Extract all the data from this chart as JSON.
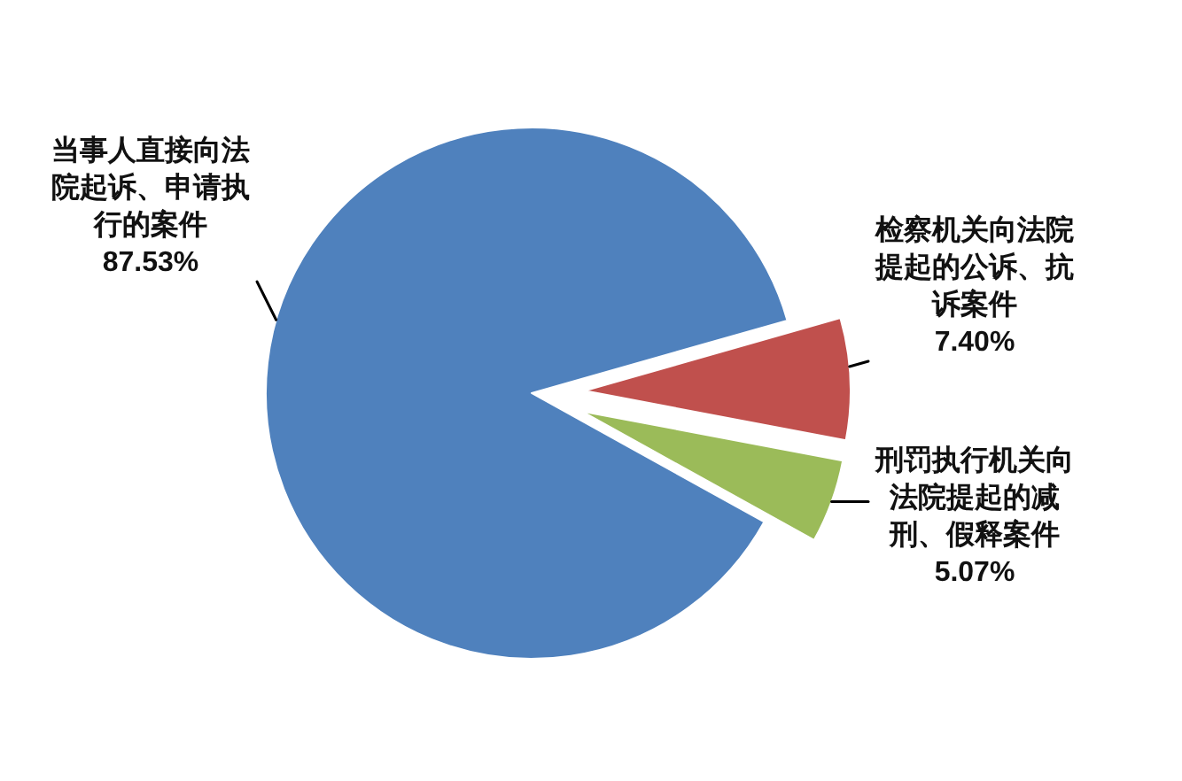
{
  "chart_data": {
    "type": "pie",
    "categories": [
      "当事人直接向法院起诉、申请执行的案件",
      "检察机关向法院提起的公诉、抗诉案件",
      "刑罚执行机关向法院提起的减刑、假释案件"
    ],
    "values": [
      87.53,
      7.4,
      5.07
    ],
    "value_labels": [
      "87.53%",
      "7.40%",
      "5.07%"
    ],
    "colors": [
      "#4f81bd",
      "#c0504d",
      "#9bbb59"
    ]
  }
}
